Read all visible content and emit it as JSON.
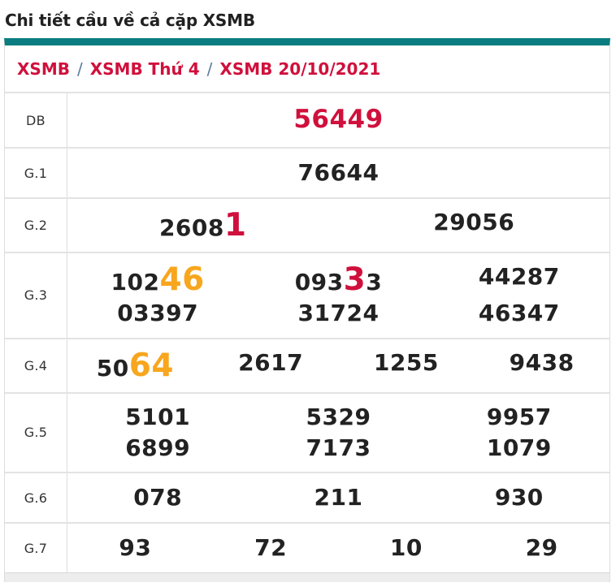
{
  "page": {
    "title": "Chi tiết cầu về cả cặp XSMB"
  },
  "colors": {
    "teal": "#0b7d80",
    "crimson": "#d0103c",
    "orange": "#f7a61e",
    "text": "#212121",
    "separator": "#5b7a9c",
    "border": "#dddddd"
  },
  "breadcrumb": {
    "separator": "/",
    "items": [
      {
        "label": "XSMB"
      },
      {
        "label": "XSMB Thứ 4"
      },
      {
        "label": "XSMB 20/10/2021"
      }
    ]
  },
  "table": {
    "rows": [
      {
        "label": "DB",
        "columns": 1,
        "numbers": [
          {
            "segments": [
              {
                "text": "56449",
                "style": "red"
              }
            ]
          }
        ]
      },
      {
        "label": "G.1",
        "columns": 1,
        "numbers": [
          {
            "segments": [
              {
                "text": "76644"
              }
            ]
          }
        ]
      },
      {
        "label": "G.2",
        "columns": 2,
        "numbers": [
          {
            "segments": [
              {
                "text": "2608"
              },
              {
                "text": "1",
                "style": "hl-red"
              }
            ]
          },
          {
            "segments": [
              {
                "text": "29056"
              }
            ]
          }
        ]
      },
      {
        "label": "G.3",
        "columns": 3,
        "numbers": [
          {
            "segments": [
              {
                "text": "102"
              },
              {
                "text": "46",
                "style": "hl-orange"
              }
            ]
          },
          {
            "segments": [
              {
                "text": "093"
              },
              {
                "text": "3",
                "style": "hl-red"
              },
              {
                "text": "3"
              }
            ]
          },
          {
            "segments": [
              {
                "text": "44287"
              }
            ]
          },
          {
            "segments": [
              {
                "text": "03397"
              }
            ]
          },
          {
            "segments": [
              {
                "text": "31724"
              }
            ]
          },
          {
            "segments": [
              {
                "text": "46347"
              }
            ]
          }
        ]
      },
      {
        "label": "G.4",
        "columns": 4,
        "numbers": [
          {
            "segments": [
              {
                "text": "50"
              },
              {
                "text": "64",
                "style": "hl-orange"
              }
            ]
          },
          {
            "segments": [
              {
                "text": "2617"
              }
            ]
          },
          {
            "segments": [
              {
                "text": "1255"
              }
            ]
          },
          {
            "segments": [
              {
                "text": "9438"
              }
            ]
          }
        ]
      },
      {
        "label": "G.5",
        "columns": 3,
        "numbers": [
          {
            "segments": [
              {
                "text": "5101"
              }
            ]
          },
          {
            "segments": [
              {
                "text": "5329"
              }
            ]
          },
          {
            "segments": [
              {
                "text": "9957"
              }
            ]
          },
          {
            "segments": [
              {
                "text": "6899"
              }
            ]
          },
          {
            "segments": [
              {
                "text": "7173"
              }
            ]
          },
          {
            "segments": [
              {
                "text": "1079"
              }
            ]
          }
        ]
      },
      {
        "label": "G.6",
        "columns": 3,
        "numbers": [
          {
            "segments": [
              {
                "text": "078"
              }
            ]
          },
          {
            "segments": [
              {
                "text": "211"
              }
            ]
          },
          {
            "segments": [
              {
                "text": "930"
              }
            ]
          }
        ]
      },
      {
        "label": "G.7",
        "columns": 4,
        "numbers": [
          {
            "segments": [
              {
                "text": "93"
              }
            ]
          },
          {
            "segments": [
              {
                "text": "72"
              }
            ]
          },
          {
            "segments": [
              {
                "text": "10"
              }
            ]
          },
          {
            "segments": [
              {
                "text": "29"
              }
            ]
          }
        ]
      }
    ]
  }
}
